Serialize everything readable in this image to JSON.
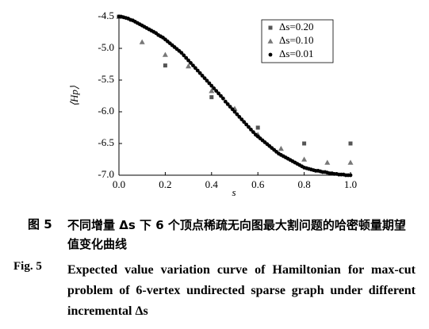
{
  "chart_data": {
    "type": "scatter",
    "xlabel": "s",
    "ylabel": "⟨Hp⟩",
    "xlim": [
      0,
      1
    ],
    "ylim": [
      -7,
      -4.5
    ],
    "xticks": [
      {
        "value": 0,
        "label": "0.0"
      },
      {
        "value": 0.2,
        "label": "0.2"
      },
      {
        "value": 0.4,
        "label": "0.4"
      },
      {
        "value": 0.6,
        "label": "0.6"
      },
      {
        "value": 0.8,
        "label": "0.8"
      },
      {
        "value": 1,
        "label": "1.0"
      }
    ],
    "yticks": [
      -4.5,
      {
        "value": -5,
        "label": "-5.0"
      },
      -5.5,
      {
        "value": -6,
        "label": "-6.0"
      },
      -6.5,
      {
        "value": -7,
        "label": "-7.0"
      }
    ],
    "legend": "upper right",
    "series": [
      {
        "name": "Δs=0.20",
        "marker": "square",
        "color": "#555555",
        "x": [
          0,
          0.2,
          0.4,
          0.6,
          0.8,
          1
        ],
        "values": [
          -4.5,
          -5.27,
          -5.77,
          -6.25,
          -6.5,
          -6.5
        ]
      },
      {
        "name": "Δs=0.10",
        "marker": "triangle",
        "color": "#777777",
        "x": [
          0,
          0.1,
          0.2,
          0.3,
          0.4,
          0.5,
          0.6,
          0.7,
          0.8,
          0.9,
          1
        ],
        "values": [
          -4.5,
          -4.9,
          -5.1,
          -5.28,
          -5.67,
          -5.95,
          -6.36,
          -6.58,
          -6.75,
          -6.8,
          -6.8
        ]
      },
      {
        "name": "Δs=0.01",
        "marker": "circle",
        "color": "#000000",
        "x": [
          0,
          0.01,
          0.02,
          0.03,
          0.04,
          0.05,
          0.06,
          0.07,
          0.08,
          0.09,
          0.1,
          0.11,
          0.12,
          0.13,
          0.14,
          0.15,
          0.16,
          0.17,
          0.18,
          0.19,
          0.2,
          0.21,
          0.22,
          0.23,
          0.24,
          0.25,
          0.26,
          0.27,
          0.28,
          0.29,
          0.3,
          0.31,
          0.32,
          0.33,
          0.34,
          0.35,
          0.36,
          0.37,
          0.38,
          0.39,
          0.4,
          0.41,
          0.42,
          0.43,
          0.44,
          0.45,
          0.46,
          0.47,
          0.48,
          0.49,
          0.5,
          0.51,
          0.52,
          0.53,
          0.54,
          0.55,
          0.56,
          0.57,
          0.58,
          0.59,
          0.6,
          0.61,
          0.62,
          0.63,
          0.64,
          0.65,
          0.66,
          0.67,
          0.68,
          0.69,
          0.7,
          0.71,
          0.72,
          0.73,
          0.74,
          0.75,
          0.76,
          0.77,
          0.78,
          0.79,
          0.8,
          0.81,
          0.82,
          0.83,
          0.84,
          0.85,
          0.86,
          0.87,
          0.88,
          0.89,
          0.9,
          0.91,
          0.92,
          0.93,
          0.94,
          0.95,
          0.96,
          0.97,
          0.98,
          0.99,
          1
        ],
        "values": [
          -4.5,
          -4.5,
          -4.51,
          -4.52,
          -4.53,
          -4.55,
          -4.56,
          -4.58,
          -4.6,
          -4.62,
          -4.64,
          -4.66,
          -4.68,
          -4.7,
          -4.72,
          -4.74,
          -4.76,
          -4.79,
          -4.81,
          -4.83,
          -4.86,
          -4.89,
          -4.92,
          -4.95,
          -4.98,
          -5.01,
          -5.04,
          -5.07,
          -5.11,
          -5.15,
          -5.19,
          -5.23,
          -5.27,
          -5.31,
          -5.35,
          -5.39,
          -5.43,
          -5.47,
          -5.51,
          -5.55,
          -5.59,
          -5.63,
          -5.67,
          -5.71,
          -5.75,
          -5.79,
          -5.84,
          -5.88,
          -5.92,
          -5.96,
          -6,
          -6.04,
          -6.08,
          -6.12,
          -6.16,
          -6.2,
          -6.24,
          -6.28,
          -6.32,
          -6.36,
          -6.39,
          -6.42,
          -6.45,
          -6.48,
          -6.51,
          -6.54,
          -6.57,
          -6.6,
          -6.63,
          -6.66,
          -6.68,
          -6.7,
          -6.72,
          -6.74,
          -6.76,
          -6.78,
          -6.8,
          -6.82,
          -6.84,
          -6.86,
          -6.88,
          -6.89,
          -6.9,
          -6.91,
          -6.92,
          -6.93,
          -6.93,
          -6.94,
          -6.95,
          -6.95,
          -6.96,
          -6.97,
          -6.97,
          -6.98,
          -6.98,
          -6.99,
          -6.99,
          -6.99,
          -7,
          -7,
          -7
        ]
      }
    ]
  },
  "caption": {
    "zh": {
      "label": "图 5",
      "text": "不同增量 Δs 下 6 个顶点稀疏无向图最大割问题的哈密顿量期望值变化曲线"
    },
    "en": {
      "label": "Fig. 5",
      "text": "Expected value variation curve of Hamiltonian for max-cut problem of 6-vertex undirected sparse graph under different incremental Δs"
    }
  }
}
